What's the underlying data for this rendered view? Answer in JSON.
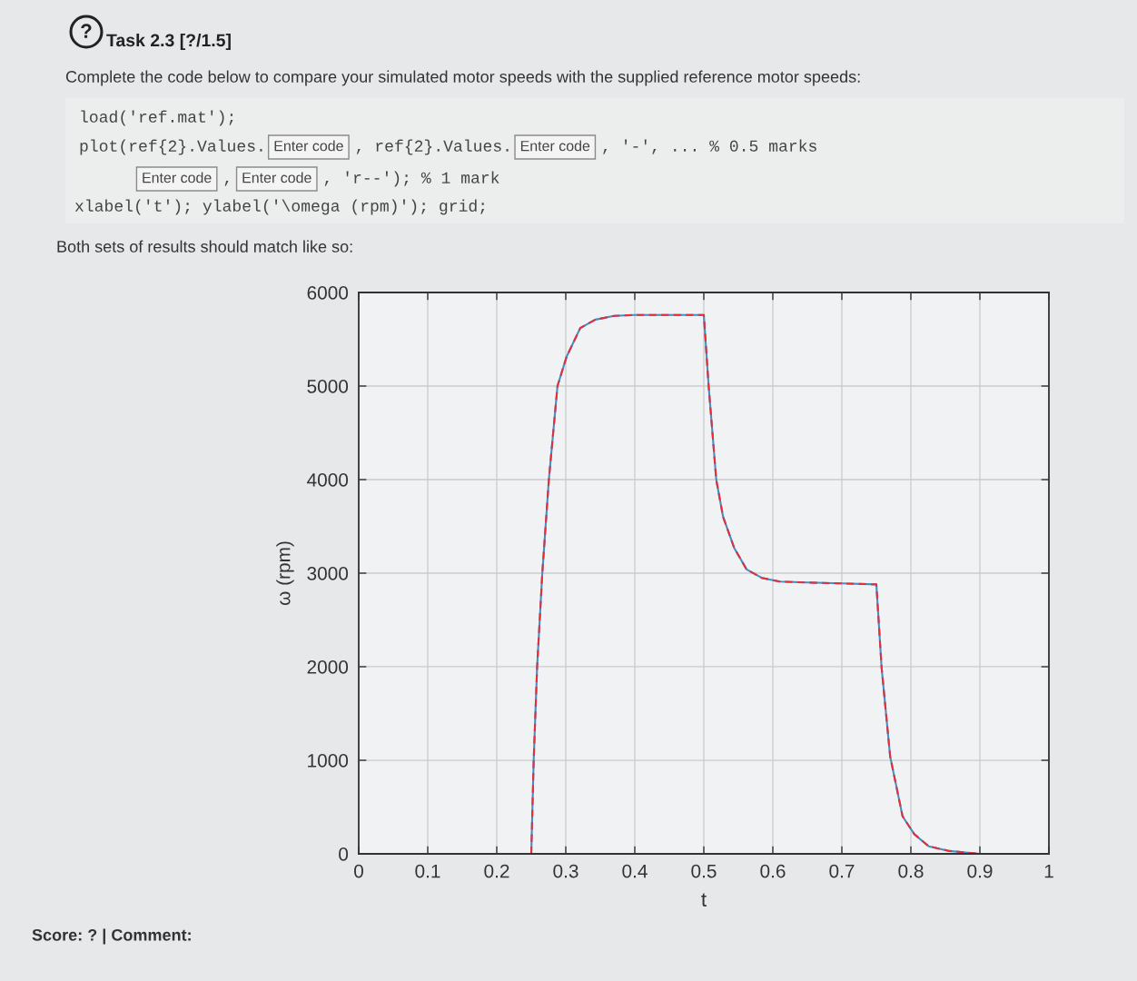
{
  "chart_data": {
    "type": "line",
    "title": "Task 2.3 [?/1.5]",
    "subtitle": "Complete the code below to compare your simulated motor speeds with the supplied reference motor speeds:",
    "annotations": [
      "?",
      "load('ref.mat');",
      "plot(ref{2}.Values.",
      "Enter code",
      ", ref{2}.Values.",
      "Enter code",
      ", '-', ... % 0.5 marks",
      "Enter code",
      ",",
      "Enter code",
      ", 'r--'); % 1 mark",
      "xlabel('t'); ylabel('\\omega (rpm)'); grid;",
      "Both sets of results should match like so:",
      "Score: ? | Comment:"
    ],
    "xlabel": "t",
    "ylabel": "ω (rpm)",
    "x": [
      0,
      0.25,
      0.2535,
      0.2585,
      0.266,
      0.2755,
      0.288,
      0.301,
      0.321,
      0.343,
      0.37,
      0.4,
      0.5,
      0.507,
      0.518,
      0.528,
      0.544,
      0.562,
      0.584,
      0.61,
      0.65,
      0.7,
      0.75,
      0.7576,
      0.77,
      0.788,
      0.805,
      0.826,
      0.856,
      0.886,
      0.9,
      1
    ],
    "series": [
      {
        "color": "#3f8fc8",
        "line_style": "solid",
        "values": [
          0,
          0,
          1000,
          2000,
          3000,
          4000,
          5000,
          5310,
          5620,
          5710,
          5750,
          5760,
          5760,
          5000,
          4000,
          3600,
          3270,
          3040,
          2950,
          2910,
          2900,
          2890,
          2880,
          1990,
          1040,
          400,
          210,
          80,
          30,
          10,
          0,
          0
        ]
      },
      {
        "color": "#e0303c",
        "line_style": "dashed",
        "values": [
          0,
          0,
          1000,
          2000,
          3000,
          4000,
          5000,
          5310,
          5620,
          5710,
          5750,
          5760,
          5760,
          5000,
          4000,
          3600,
          3270,
          3040,
          2950,
          2910,
          2900,
          2890,
          2880,
          1990,
          1040,
          400,
          210,
          80,
          30,
          10,
          0,
          0
        ]
      }
    ],
    "xlim": [
      0,
      1
    ],
    "xticks": [
      0,
      0.1,
      0.2,
      0.3,
      0.4,
      0.5,
      0.6,
      0.7,
      0.8,
      0.9,
      1
    ],
    "ylim": [
      0,
      6000
    ],
    "yticks": [
      0,
      1000,
      2000,
      3000,
      4000,
      5000,
      6000
    ],
    "grid": true
  }
}
